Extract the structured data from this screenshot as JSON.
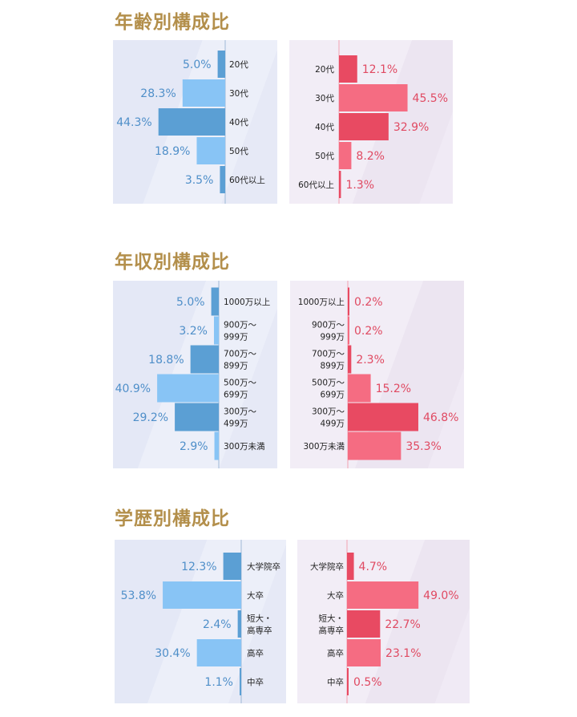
{
  "colors": {
    "title": "#b38f4b",
    "male_dark": "#5b9fd4",
    "male_light": "#88c4f5",
    "female_dark": "#e84a62",
    "female_light": "#f56c82",
    "male_text": "#4f8fc9",
    "female_text": "#e04a62"
  },
  "chart_data": [
    {
      "id": "age",
      "type": "bar",
      "title": "年齢別構成比",
      "orientation": "horizontal-butterfly",
      "categories": [
        "20代",
        "30代",
        "40代",
        "50代",
        "60代以上"
      ],
      "series": [
        {
          "values": [
            5.0,
            28.3,
            44.3,
            18.9,
            3.5
          ],
          "labels": [
            "5.0%",
            "28.3%",
            "44.3%",
            "18.9%",
            "3.5%"
          ]
        },
        {
          "values": [
            12.1,
            45.5,
            32.9,
            8.2,
            1.3
          ],
          "labels": [
            "12.1%",
            "45.5%",
            "32.9%",
            "8.2%",
            "1.3%"
          ]
        }
      ]
    },
    {
      "id": "income",
      "type": "bar",
      "title": "年収別構成比",
      "orientation": "horizontal-butterfly",
      "categories": [
        "1000万以上",
        "900万〜\n999万",
        "700万〜\n899万",
        "500万〜\n699万",
        "300万〜\n499万",
        "300万未満"
      ],
      "series": [
        {
          "values": [
            5.0,
            3.2,
            18.8,
            40.9,
            29.2,
            2.9
          ],
          "labels": [
            "5.0%",
            "3.2%",
            "18.8%",
            "40.9%",
            "29.2%",
            "2.9%"
          ]
        },
        {
          "values": [
            0.2,
            0.2,
            2.3,
            15.2,
            46.8,
            35.3
          ],
          "labels": [
            "0.2%",
            "0.2%",
            "2.3%",
            "15.2%",
            "46.8%",
            "35.3%"
          ]
        }
      ]
    },
    {
      "id": "education",
      "type": "bar",
      "title": "学歴別構成比",
      "orientation": "horizontal-butterfly",
      "categories": [
        "大学院卒",
        "大卒",
        "短大・\n高専卒",
        "高卒",
        "中卒"
      ],
      "series": [
        {
          "values": [
            12.3,
            53.8,
            2.4,
            30.4,
            1.1
          ],
          "labels": [
            "12.3%",
            "53.8%",
            "2.4%",
            "30.4%",
            "1.1%"
          ]
        },
        {
          "values": [
            4.7,
            49.0,
            22.7,
            23.1,
            0.5
          ],
          "labels": [
            "4.7%",
            "49.0%",
            "22.7%",
            "23.1%",
            "0.5%"
          ]
        }
      ]
    }
  ]
}
